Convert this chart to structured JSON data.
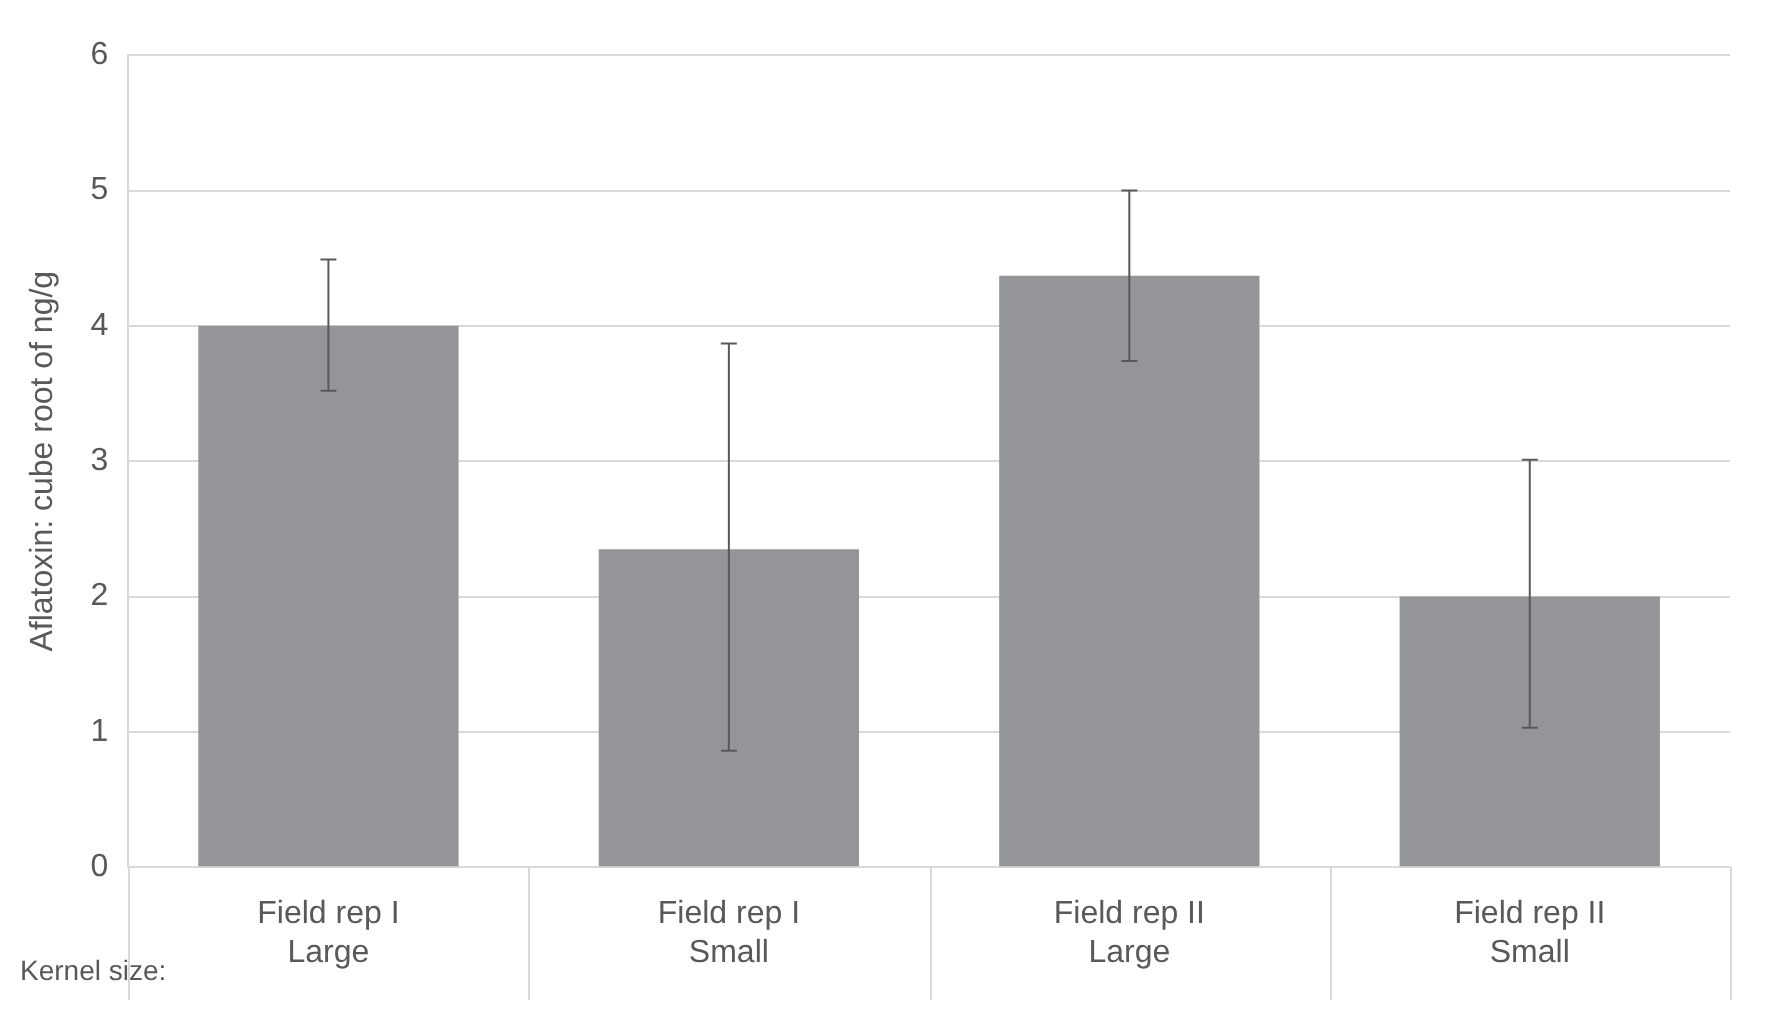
{
  "chart_data": {
    "type": "bar",
    "ylabel": "Aflatoxin: cube root of ng/g",
    "categories": [
      "Field rep I\nLarge",
      "Field rep I\nSmall",
      "Field rep II\nLarge",
      "Field rep II\nSmall"
    ],
    "values": [
      4.0,
      2.35,
      4.37,
      2.0
    ],
    "errors": [
      [
        3.52,
        4.49
      ],
      [
        0.86,
        3.87
      ],
      [
        3.74,
        5.0
      ],
      [
        1.03,
        3.01
      ]
    ],
    "color": "#939598",
    "ylim": [
      0,
      6
    ],
    "yticks": [
      0,
      1,
      2,
      3,
      4,
      5,
      6
    ],
    "grid": "y",
    "annotations": [
      "Kernel size:"
    ]
  }
}
